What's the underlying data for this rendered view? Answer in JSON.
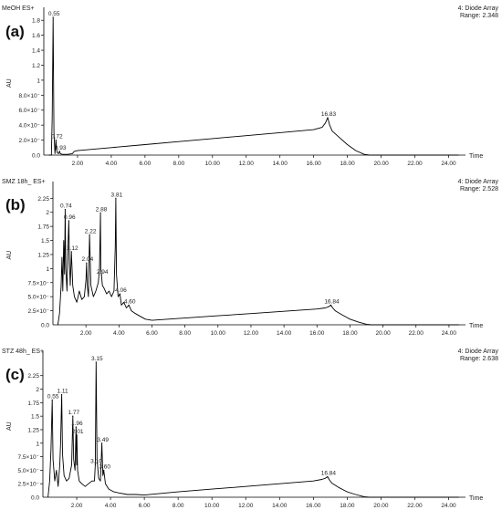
{
  "chart_data": [
    {
      "type": "line",
      "panel_label": "(a)",
      "title": "MeOH ES+",
      "detector": "4: Diode Array",
      "range": "Range: 2.348",
      "xlabel": "Time",
      "ylabel": "AU",
      "xlim": [
        0,
        25
      ],
      "ylim": [
        0,
        1.9
      ],
      "x_ticks": [
        "2.00",
        "4.00",
        "6.00",
        "8.00",
        "10.00",
        "12.00",
        "14.00",
        "16.00",
        "18.00",
        "20.00",
        "22.00",
        "24.00"
      ],
      "y_ticks": [
        {
          "value": 0.2,
          "label": "2.0×10⁻"
        },
        {
          "value": 0.4,
          "label": "4.0×10⁻"
        },
        {
          "value": 0.6,
          "label": "6.0×10⁻"
        },
        {
          "value": 0.8,
          "label": "8.0×10⁻"
        },
        {
          "value": 1.0,
          "label": "1"
        },
        {
          "value": 1.2,
          "label": "1.2"
        },
        {
          "value": 1.4,
          "label": "1.4"
        },
        {
          "value": 1.6,
          "label": "1.6"
        },
        {
          "value": 1.8,
          "label": "1.8"
        }
      ],
      "peaks": [
        {
          "x": 0.55,
          "y": 1.84,
          "label": "0.55"
        },
        {
          "x": 0.72,
          "y": 0.2,
          "label": "0.72"
        },
        {
          "x": 0.93,
          "y": 0.05,
          "label": "0.93"
        },
        {
          "x": 16.83,
          "y": 0.5,
          "label": "16.83"
        }
      ],
      "x": [
        0.3,
        0.45,
        0.5,
        0.55,
        0.6,
        0.66,
        0.7,
        0.72,
        0.75,
        0.8,
        0.87,
        0.93,
        0.98,
        1.1,
        1.4,
        1.7,
        1.8,
        2.0,
        4.0,
        6.0,
        8.0,
        10.0,
        12.0,
        14.0,
        16.0,
        16.5,
        16.7,
        16.83,
        16.95,
        17.1,
        17.5,
        18.0,
        18.5,
        19.0,
        19.3,
        20.0,
        24.6
      ],
      "y": [
        0.0,
        0.0,
        0.5,
        1.84,
        0.3,
        0.02,
        0.12,
        0.2,
        0.08,
        0.03,
        0.02,
        0.05,
        0.02,
        0.01,
        0.01,
        0.02,
        0.05,
        0.06,
        0.1,
        0.14,
        0.18,
        0.22,
        0.26,
        0.3,
        0.34,
        0.37,
        0.43,
        0.5,
        0.4,
        0.32,
        0.24,
        0.14,
        0.06,
        0.01,
        0.0,
        0.0,
        0.0
      ]
    },
    {
      "type": "line",
      "panel_label": "(b)",
      "title": "SMZ 18h_ ES+",
      "detector": "4: Diode Array",
      "range": "Range: 2.528",
      "xlabel": "Time",
      "ylabel": "AU",
      "xlim": [
        0,
        25
      ],
      "ylim": [
        0,
        2.45
      ],
      "x_ticks": [
        "2.00",
        "4.00",
        "6.00",
        "8.00",
        "10.00",
        "12.00",
        "14.00",
        "16.00",
        "18.00",
        "20.00",
        "22.00",
        "24.00"
      ],
      "y_ticks": [
        {
          "value": 0.25,
          "label": "2.5×10⁻"
        },
        {
          "value": 0.5,
          "label": "5.0×10⁻"
        },
        {
          "value": 0.75,
          "label": "7.5×10⁻"
        },
        {
          "value": 1.0,
          "label": "1"
        },
        {
          "value": 1.25,
          "label": "1.25"
        },
        {
          "value": 1.5,
          "label": "1.5"
        },
        {
          "value": 1.75,
          "label": "1.75"
        },
        {
          "value": 2.0,
          "label": "2"
        },
        {
          "value": 2.25,
          "label": "2.25"
        }
      ],
      "peaks": [
        {
          "x": 0.74,
          "y": 2.05,
          "label": "0.74"
        },
        {
          "x": 0.96,
          "y": 1.85,
          "label": "0.96"
        },
        {
          "x": 1.12,
          "y": 1.3,
          "label": "1.12"
        },
        {
          "x": 2.04,
          "y": 1.1,
          "label": "2.04"
        },
        {
          "x": 2.22,
          "y": 1.6,
          "label": "2.22"
        },
        {
          "x": 2.88,
          "y": 1.99,
          "label": "2.88"
        },
        {
          "x": 2.94,
          "y": 0.88,
          "label": "2.94"
        },
        {
          "x": 3.81,
          "y": 2.25,
          "label": "3.81"
        },
        {
          "x": 4.06,
          "y": 0.55,
          "label": "4.06"
        },
        {
          "x": 4.6,
          "y": 0.35,
          "label": "4.60"
        },
        {
          "x": 16.84,
          "y": 0.35,
          "label": "16.84"
        }
      ],
      "x": [
        0.3,
        0.4,
        0.5,
        0.55,
        0.6,
        0.65,
        0.7,
        0.74,
        0.78,
        0.85,
        0.9,
        0.96,
        1.0,
        1.05,
        1.12,
        1.2,
        1.3,
        1.45,
        1.6,
        1.75,
        1.9,
        2.0,
        2.04,
        2.08,
        2.15,
        2.22,
        2.3,
        2.45,
        2.6,
        2.75,
        2.82,
        2.88,
        2.9,
        2.94,
        3.0,
        3.1,
        3.25,
        3.4,
        3.55,
        3.7,
        3.78,
        3.81,
        3.85,
        3.95,
        4.06,
        4.15,
        4.3,
        4.45,
        4.6,
        4.75,
        5.0,
        5.3,
        5.6,
        6.0,
        8.0,
        10.0,
        12.0,
        14.0,
        16.0,
        16.5,
        16.7,
        16.84,
        16.95,
        17.1,
        17.5,
        18.0,
        18.5,
        19.0,
        19.3,
        19.6,
        24.6
      ],
      "y": [
        0.0,
        0.2,
        0.7,
        1.2,
        0.6,
        1.5,
        0.9,
        2.05,
        1.0,
        0.6,
        1.3,
        1.85,
        1.1,
        0.7,
        1.3,
        0.7,
        0.5,
        0.4,
        0.6,
        0.45,
        0.5,
        0.8,
        1.1,
        0.7,
        0.5,
        1.6,
        0.7,
        0.5,
        0.6,
        0.75,
        1.0,
        1.99,
        1.0,
        0.88,
        0.7,
        0.65,
        0.55,
        0.6,
        0.5,
        0.6,
        1.4,
        2.25,
        0.9,
        0.5,
        0.55,
        0.35,
        0.4,
        0.3,
        0.35,
        0.25,
        0.2,
        0.15,
        0.1,
        0.08,
        0.12,
        0.16,
        0.2,
        0.24,
        0.28,
        0.3,
        0.32,
        0.35,
        0.3,
        0.25,
        0.18,
        0.1,
        0.05,
        0.01,
        0.0,
        0.0,
        0.0
      ]
    },
    {
      "type": "line",
      "panel_label": "(c)",
      "title": "STZ 48h_ ES+",
      "detector": "4: Diode Array",
      "range": "Range: 2.638",
      "xlabel": "Time",
      "ylabel": "AU",
      "xlim": [
        0,
        25
      ],
      "ylim": [
        0,
        2.6
      ],
      "x_ticks": [
        "2.00",
        "4.00",
        "6.00",
        "8.00",
        "10.00",
        "12.00",
        "14.00",
        "16.00",
        "18.00",
        "20.00",
        "22.00",
        "24.00"
      ],
      "y_ticks": [
        {
          "value": 0.25,
          "label": "2.5×10⁻"
        },
        {
          "value": 0.5,
          "label": "5.0×10⁻"
        },
        {
          "value": 0.75,
          "label": "7.5×10⁻"
        },
        {
          "value": 1.0,
          "label": "1"
        },
        {
          "value": 1.25,
          "label": "1.25"
        },
        {
          "value": 1.5,
          "label": "1.5"
        },
        {
          "value": 1.75,
          "label": "1.75"
        },
        {
          "value": 2.0,
          "label": "2"
        },
        {
          "value": 2.25,
          "label": "2.25"
        }
      ],
      "peaks": [
        {
          "x": 0.55,
          "y": 1.8,
          "label": "0.55"
        },
        {
          "x": 1.11,
          "y": 1.9,
          "label": "1.11"
        },
        {
          "x": 1.77,
          "y": 1.5,
          "label": "1.77"
        },
        {
          "x": 1.96,
          "y": 1.3,
          "label": "1.96"
        },
        {
          "x": 2.01,
          "y": 1.15,
          "label": "2.01"
        },
        {
          "x": 3.1,
          "y": 0.6,
          "label": "3.10"
        },
        {
          "x": 3.15,
          "y": 2.5,
          "label": "3.15"
        },
        {
          "x": 3.49,
          "y": 1.0,
          "label": "3.49"
        },
        {
          "x": 3.6,
          "y": 0.5,
          "label": "3.60"
        },
        {
          "x": 16.84,
          "y": 0.38,
          "label": "16.84"
        }
      ],
      "x": [
        0.3,
        0.4,
        0.48,
        0.55,
        0.6,
        0.7,
        0.8,
        0.9,
        1.0,
        1.05,
        1.11,
        1.16,
        1.25,
        1.4,
        1.55,
        1.7,
        1.77,
        1.82,
        1.9,
        1.96,
        2.0,
        2.01,
        2.05,
        2.15,
        2.3,
        2.5,
        2.7,
        2.9,
        3.05,
        3.1,
        3.15,
        3.2,
        3.3,
        3.4,
        3.49,
        3.55,
        3.6,
        3.7,
        3.9,
        4.2,
        4.5,
        5.0,
        5.5,
        6.0,
        8.0,
        10.0,
        12.0,
        14.0,
        16.0,
        16.5,
        16.7,
        16.84,
        16.95,
        17.1,
        17.5,
        18.0,
        18.5,
        19.0,
        19.3,
        19.6,
        24.6
      ],
      "y": [
        0.0,
        0.3,
        0.9,
        1.8,
        0.7,
        0.3,
        0.5,
        0.2,
        0.6,
        1.0,
        1.9,
        0.8,
        0.4,
        0.3,
        0.35,
        0.6,
        1.5,
        0.7,
        0.5,
        1.3,
        0.6,
        1.15,
        0.5,
        0.3,
        0.25,
        0.2,
        0.25,
        0.3,
        0.3,
        0.6,
        2.5,
        0.7,
        0.35,
        0.3,
        1.0,
        0.4,
        0.5,
        0.25,
        0.15,
        0.1,
        0.08,
        0.05,
        0.05,
        0.04,
        0.1,
        0.15,
        0.2,
        0.25,
        0.3,
        0.33,
        0.35,
        0.38,
        0.32,
        0.26,
        0.18,
        0.1,
        0.05,
        0.01,
        0.0,
        0.0,
        0.0
      ]
    }
  ]
}
